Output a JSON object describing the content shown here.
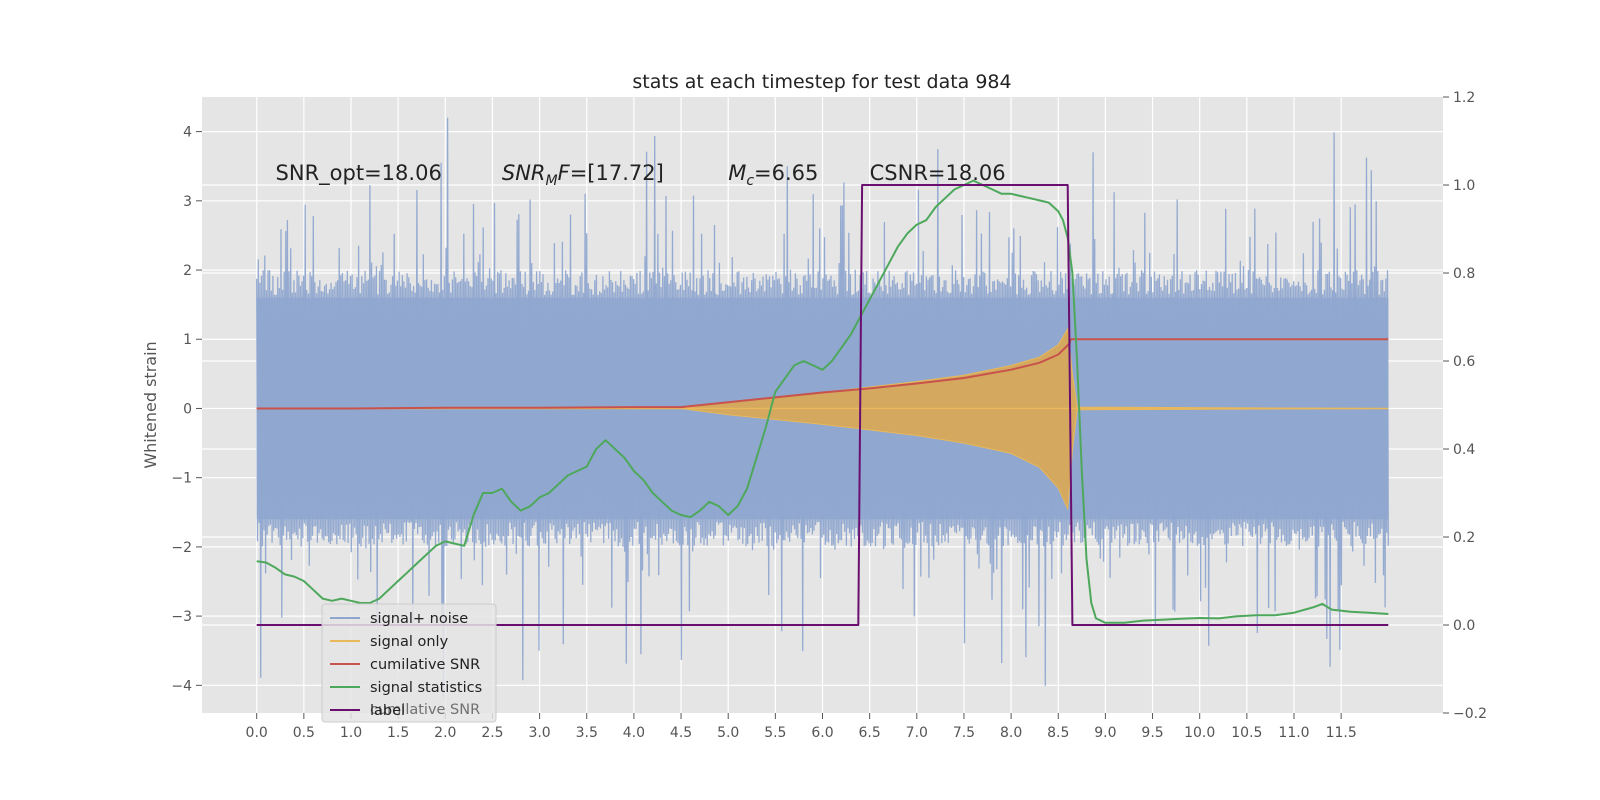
{
  "chart_data": {
    "type": "line",
    "title": "stats at each timestep for test data 984",
    "ylabel": "Whitened strain",
    "ylabel_right": "",
    "xlim": [
      -0.58,
      12.58
    ],
    "ylim": [
      -4.4,
      4.5
    ],
    "ylim_right": [
      -0.2,
      1.2
    ],
    "grid": true,
    "legend_placement": "lower-left",
    "x_ticks": [
      0.0,
      0.5,
      1.0,
      1.5,
      2.0,
      2.5,
      3.0,
      3.5,
      4.0,
      4.5,
      5.0,
      5.5,
      6.0,
      6.5,
      7.0,
      7.5,
      8.0,
      8.5,
      9.0,
      9.5,
      10.0,
      10.5,
      11.0,
      11.5
    ],
    "x_tick_labels": [
      "0.0",
      "0.5",
      "1.0",
      "1.5",
      "2.0",
      "2.5",
      "3.0",
      "3.5",
      "4.0",
      "4.5",
      "5.0",
      "5.5",
      "6.0",
      "6.5",
      "7.0",
      "7.5",
      "8.0",
      "8.5",
      "9.0",
      "9.5",
      "10.0",
      "10.5",
      "11.0",
      "11.5"
    ],
    "y_ticks": [
      -4,
      -3,
      -2,
      -1,
      0,
      1,
      2,
      3,
      4
    ],
    "y_tick_labels": [
      "−4",
      "−3",
      "−2",
      "−1",
      "0",
      "1",
      "2",
      "3",
      "4"
    ],
    "y_right_ticks": [
      -0.2,
      0.0,
      0.2,
      0.4,
      0.6,
      0.8,
      1.0,
      1.2
    ],
    "y_right_tick_labels": [
      "−0.2",
      "0.0",
      "0.2",
      "0.4",
      "0.6",
      "0.8",
      "1.0",
      "1.2"
    ],
    "annotations": [
      {
        "kind": "plain",
        "text": "SNR_opt=18.06",
        "x": 0.2,
        "y": 3.3
      },
      {
        "kind": "snrmf",
        "sym": "SNR",
        "sub": "M",
        "tail": "F=[17.72]",
        "x": 2.6,
        "y": 3.3
      },
      {
        "kind": "mc",
        "sym": "M",
        "sub": "c",
        "tail": "=6.65",
        "x": 5.0,
        "y": 3.3
      },
      {
        "kind": "plain",
        "text": "CSNR=18.06",
        "x": 6.5,
        "y": 3.3
      }
    ],
    "legend_ghost_text": "cumilative SNR",
    "colors": {
      "noise": "#8fa6cf",
      "signal": "#e8b85a",
      "signal_fill": "#d8a857",
      "snr": "#c8524c",
      "stats": "#4ea85c",
      "label": "#6a0f70",
      "plot_bg": "#e5e5e5",
      "grid": "#ffffff"
    },
    "series": [
      {
        "name": "signal+ noise",
        "axis": "left",
        "generated": true,
        "x_start": 0.0,
        "x_end": 12.0,
        "samples": 1400,
        "sigma": 1.0,
        "band": [
          -2.0,
          2.0
        ]
      },
      {
        "name": "signal only",
        "axis": "left",
        "envelope": {
          "x": [
            0.0,
            4.5,
            5.0,
            5.5,
            6.0,
            6.5,
            7.0,
            7.5,
            8.0,
            8.3,
            8.5,
            8.6,
            8.65,
            8.7,
            12.0
          ],
          "upper": [
            0.0,
            0.0,
            0.09,
            0.16,
            0.23,
            0.31,
            0.39,
            0.48,
            0.62,
            0.74,
            0.92,
            1.15,
            0.5,
            0.02,
            0.0
          ],
          "lower": [
            0.0,
            0.0,
            -0.09,
            -0.16,
            -0.23,
            -0.31,
            -0.39,
            -0.5,
            -0.65,
            -0.85,
            -1.15,
            -1.45,
            -0.6,
            -0.02,
            0.0
          ]
        }
      },
      {
        "name": "cumilative SNR",
        "axis": "left",
        "x": [
          0.0,
          1.0,
          2.0,
          3.0,
          4.0,
          4.5,
          5.0,
          5.5,
          6.0,
          6.5,
          7.0,
          7.5,
          8.0,
          8.3,
          8.5,
          8.62,
          8.63,
          12.0
        ],
        "y": [
          0.0,
          0.0,
          0.01,
          0.01,
          0.02,
          0.02,
          0.09,
          0.16,
          0.23,
          0.29,
          0.36,
          0.44,
          0.56,
          0.66,
          0.78,
          0.94,
          1.0,
          1.0
        ]
      },
      {
        "name": "signal statistics",
        "axis": "right",
        "x": [
          0.0,
          0.1,
          0.2,
          0.3,
          0.4,
          0.5,
          0.6,
          0.7,
          0.8,
          0.9,
          1.0,
          1.1,
          1.2,
          1.3,
          1.4,
          1.5,
          1.6,
          1.7,
          1.8,
          1.9,
          2.0,
          2.1,
          2.2,
          2.3,
          2.4,
          2.5,
          2.6,
          2.7,
          2.8,
          2.9,
          3.0,
          3.1,
          3.2,
          3.3,
          3.4,
          3.5,
          3.6,
          3.7,
          3.8,
          3.9,
          4.0,
          4.1,
          4.2,
          4.3,
          4.4,
          4.5,
          4.6,
          4.7,
          4.8,
          4.9,
          5.0,
          5.1,
          5.2,
          5.3,
          5.4,
          5.5,
          5.6,
          5.7,
          5.8,
          5.9,
          6.0,
          6.1,
          6.2,
          6.3,
          6.4,
          6.5,
          6.6,
          6.7,
          6.8,
          6.9,
          7.0,
          7.1,
          7.2,
          7.3,
          7.4,
          7.5,
          7.6,
          7.7,
          7.8,
          7.9,
          8.0,
          8.1,
          8.2,
          8.3,
          8.4,
          8.5,
          8.55,
          8.6,
          8.65,
          8.7,
          8.75,
          8.8,
          8.85,
          8.9,
          9.0,
          9.2,
          9.4,
          9.6,
          9.8,
          10.0,
          10.2,
          10.4,
          10.6,
          10.8,
          11.0,
          11.2,
          11.3,
          11.4,
          11.6,
          11.8,
          12.0
        ],
        "y": [
          0.145,
          0.142,
          0.13,
          0.115,
          0.11,
          0.1,
          0.08,
          0.06,
          0.055,
          0.06,
          0.055,
          0.05,
          0.05,
          0.06,
          0.08,
          0.1,
          0.12,
          0.14,
          0.16,
          0.18,
          0.19,
          0.185,
          0.18,
          0.25,
          0.3,
          0.3,
          0.31,
          0.28,
          0.26,
          0.27,
          0.29,
          0.3,
          0.32,
          0.34,
          0.35,
          0.36,
          0.4,
          0.42,
          0.4,
          0.38,
          0.35,
          0.33,
          0.3,
          0.28,
          0.26,
          0.25,
          0.245,
          0.26,
          0.28,
          0.27,
          0.25,
          0.27,
          0.31,
          0.38,
          0.45,
          0.53,
          0.56,
          0.59,
          0.6,
          0.59,
          0.58,
          0.6,
          0.63,
          0.66,
          0.7,
          0.74,
          0.78,
          0.82,
          0.86,
          0.89,
          0.91,
          0.92,
          0.95,
          0.97,
          0.99,
          1.0,
          1.01,
          1.0,
          0.99,
          0.98,
          0.98,
          0.975,
          0.97,
          0.965,
          0.96,
          0.94,
          0.92,
          0.88,
          0.8,
          0.6,
          0.35,
          0.15,
          0.05,
          0.015,
          0.005,
          0.005,
          0.01,
          0.012,
          0.014,
          0.016,
          0.015,
          0.02,
          0.022,
          0.022,
          0.028,
          0.04,
          0.048,
          0.035,
          0.03,
          0.028,
          0.025
        ]
      },
      {
        "name": "label",
        "axis": "right",
        "x": [
          0.0,
          6.38,
          6.42,
          8.6,
          8.65,
          12.0
        ],
        "y": [
          0.0,
          0.0,
          1.0,
          1.0,
          0.0,
          0.0
        ]
      }
    ]
  }
}
